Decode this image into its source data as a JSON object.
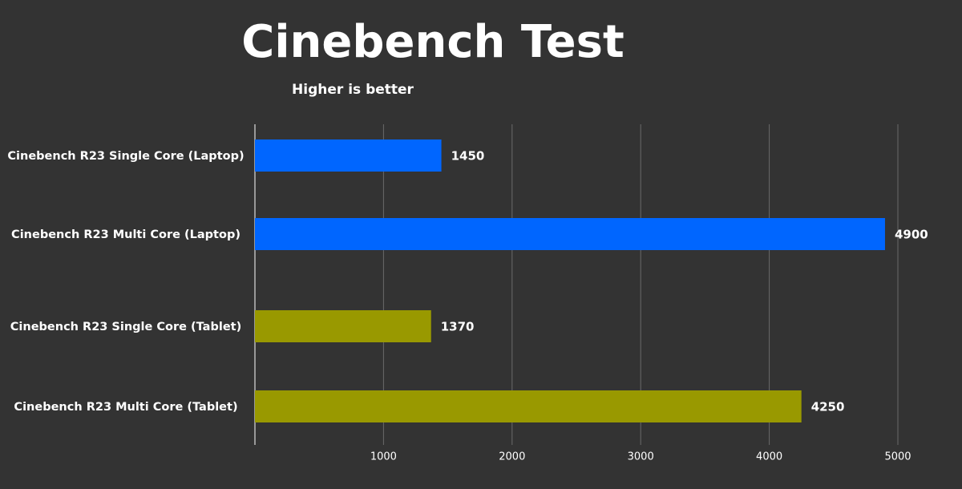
{
  "chart_data": {
    "type": "bar",
    "orientation": "horizontal",
    "title": "Cinebench Test",
    "subtitle": "Higher is better",
    "categories": [
      "Cinebench R23 Single Core (Laptop)",
      "Cinebench R23 Multi Core (Laptop)",
      "Cinebench R23 Single Core (Tablet)",
      "Cinebench R23 Multi Core (Tablet)"
    ],
    "values": [
      1450,
      4900,
      1370,
      4250
    ],
    "colors": [
      "#0066ff",
      "#0066ff",
      "#999900",
      "#999900"
    ],
    "xlim": [
      0,
      5000
    ],
    "xticks": [
      1000,
      2000,
      3000,
      4000,
      5000
    ],
    "grid": true
  }
}
